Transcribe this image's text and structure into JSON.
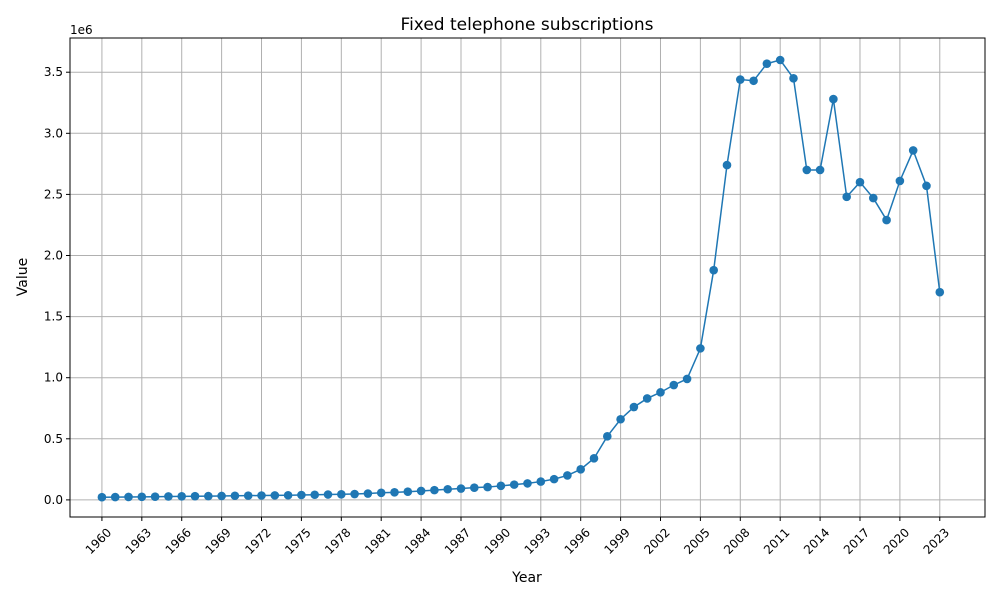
{
  "chart_data": {
    "type": "line",
    "title": "Fixed telephone subscriptions",
    "xlabel": "Year",
    "ylabel": "Value",
    "y_offset_text": "1e6",
    "xlim": [
      1957.6,
      2026.4
    ],
    "ylim": [
      -140000,
      3780000
    ],
    "x_ticks": [
      1960,
      1963,
      1966,
      1969,
      1972,
      1975,
      1978,
      1981,
      1984,
      1987,
      1990,
      1993,
      1996,
      1999,
      2002,
      2005,
      2008,
      2011,
      2014,
      2017,
      2020,
      2023
    ],
    "y_ticks": [
      0,
      500000,
      1000000,
      1500000,
      2000000,
      2500000,
      3000000,
      3500000
    ],
    "y_tick_labels": [
      "0.0",
      "0.5",
      "1.0",
      "1.5",
      "2.0",
      "2.5",
      "3.0",
      "3.5"
    ],
    "grid": true,
    "color": "#1f77b4",
    "series": [
      {
        "x": [
          1960,
          1961,
          1962,
          1963,
          1964,
          1965,
          1966,
          1967,
          1968,
          1969,
          1970,
          1971,
          1972,
          1973,
          1974,
          1975,
          1976,
          1977,
          1978,
          1979,
          1980,
          1981,
          1982,
          1983,
          1984,
          1985,
          1986,
          1987,
          1988,
          1989,
          1990,
          1991,
          1992,
          1993,
          1994,
          1995,
          1996,
          1997,
          1998,
          1999,
          2000,
          2001,
          2002,
          2003,
          2004,
          2005,
          2006,
          2007,
          2008,
          2009,
          2010,
          2011,
          2012,
          2013,
          2014,
          2015,
          2016,
          2017,
          2018,
          2019,
          2020,
          2021,
          2022,
          2023
        ],
        "values": [
          22000,
          23000,
          24000,
          25000,
          26000,
          28000,
          29000,
          30000,
          31000,
          32000,
          34000,
          35000,
          36000,
          37000,
          38000,
          40000,
          42000,
          44000,
          46000,
          48000,
          52000,
          58000,
          62000,
          67000,
          73000,
          80000,
          87000,
          93000,
          100000,
          105000,
          115000,
          125000,
          135000,
          150000,
          170000,
          200000,
          250000,
          340000,
          520000,
          660000,
          760000,
          830000,
          880000,
          940000,
          990000,
          1240000,
          1880000,
          2740000,
          3440000,
          3430000,
          3570000,
          3600000,
          3450000,
          2700000,
          2700000,
          3280000,
          2480000,
          2600000,
          2470000,
          2290000,
          2610000,
          2860000,
          2570000,
          1700000
        ]
      }
    ]
  }
}
